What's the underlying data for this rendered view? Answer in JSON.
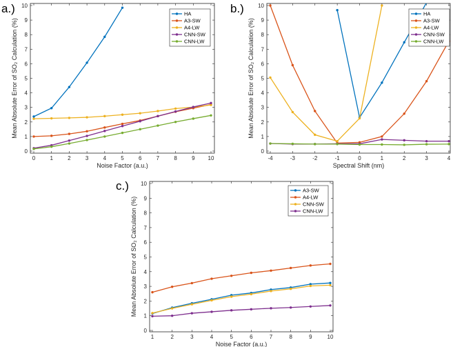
{
  "colors": {
    "blue": "#0072BD",
    "orange": "#D95319",
    "yellow": "#EDB120",
    "purple": "#7E2F8E",
    "green": "#77AC30"
  },
  "chart_data": [
    {
      "type": "line",
      "panel_label": "a.)",
      "xlabel": "Noise Factor (a.u.)",
      "ylabel": "Mean Absolute Error of SO₂ Calculation (%)",
      "xlim": [
        0,
        10
      ],
      "ylim": [
        0,
        10
      ],
      "xticks": [
        "0",
        "1",
        "2",
        "3",
        "4",
        "5",
        "6",
        "7",
        "8",
        "9",
        "10"
      ],
      "yticks": [
        "0",
        "1",
        "2",
        "3",
        "4",
        "5",
        "6",
        "7",
        "8",
        "9",
        "10"
      ],
      "legend_position": "top-right",
      "series": [
        {
          "name": "HA",
          "color": "#0072BD",
          "x": [
            0,
            1,
            2,
            3,
            4,
            5
          ],
          "y": [
            2.37,
            2.95,
            4.4,
            6.07,
            7.85,
            9.85
          ]
        },
        {
          "name": "A3-SW",
          "color": "#D95319",
          "x": [
            0,
            1,
            2,
            3,
            4,
            5,
            6,
            7,
            8,
            9,
            10
          ],
          "y": [
            1.0,
            1.05,
            1.18,
            1.36,
            1.62,
            1.87,
            2.1,
            2.4,
            2.7,
            2.95,
            3.2
          ]
        },
        {
          "name": "A4-LW",
          "color": "#EDB120",
          "x": [
            0,
            1,
            2,
            3,
            4,
            5,
            6,
            7,
            8,
            9,
            10
          ],
          "y": [
            2.22,
            2.25,
            2.28,
            2.32,
            2.4,
            2.5,
            2.6,
            2.75,
            2.92,
            3.02,
            3.17
          ]
        },
        {
          "name": "CNN-SW",
          "color": "#7E2F8E",
          "x": [
            0,
            1,
            2,
            3,
            4,
            5,
            6,
            7,
            8,
            9,
            10
          ],
          "y": [
            0.2,
            0.4,
            0.72,
            1.04,
            1.38,
            1.72,
            2.05,
            2.4,
            2.72,
            3.03,
            3.3
          ]
        },
        {
          "name": "CNN-LW",
          "color": "#77AC30",
          "x": [
            0,
            1,
            2,
            3,
            4,
            5,
            6,
            7,
            8,
            9,
            10
          ],
          "y": [
            0.15,
            0.3,
            0.52,
            0.76,
            1.0,
            1.25,
            1.5,
            1.75,
            2.0,
            2.23,
            2.45
          ]
        }
      ]
    },
    {
      "type": "line",
      "panel_label": "b.)",
      "xlabel": "Spectral Shift (nm)",
      "ylabel": "Mean Absolute Error of SO₂ Calculation (%)",
      "xlim": [
        -4,
        4
      ],
      "ylim": [
        0,
        10
      ],
      "xticks": [
        "-4",
        "-3",
        "-2",
        "-1",
        "0",
        "1",
        "2",
        "3",
        "4"
      ],
      "yticks": [
        "0",
        "1",
        "2",
        "3",
        "4",
        "5",
        "6",
        "7",
        "8",
        "9",
        "10"
      ],
      "legend_position": "top-right",
      "series": [
        {
          "name": "HA",
          "color": "#0072BD",
          "x": [
            -1,
            0,
            1,
            2,
            3
          ],
          "y": [
            9.68,
            2.3,
            4.7,
            7.47,
            10.2
          ]
        },
        {
          "name": "A3-SW",
          "color": "#D95319",
          "x": [
            -4,
            -3,
            -2,
            -1,
            0,
            1,
            2,
            3,
            4
          ],
          "y": [
            10.0,
            5.9,
            2.75,
            0.55,
            0.6,
            1.0,
            2.57,
            4.8,
            7.55
          ]
        },
        {
          "name": "A4-LW",
          "color": "#EDB120",
          "x": [
            -4,
            -3,
            -2,
            -1,
            0,
            1
          ],
          "y": [
            5.05,
            2.68,
            1.12,
            0.68,
            2.25,
            10.0
          ]
        },
        {
          "name": "CNN-SW",
          "color": "#7E2F8E",
          "x": [
            -4,
            -3,
            -2,
            -1,
            0,
            1,
            2,
            3,
            4
          ],
          "y": [
            0.52,
            0.48,
            0.48,
            0.5,
            0.5,
            0.8,
            0.74,
            0.68,
            0.68
          ]
        },
        {
          "name": "CNN-LW",
          "color": "#77AC30",
          "x": [
            -4,
            -3,
            -2,
            -1,
            0,
            1,
            2,
            3,
            4
          ],
          "y": [
            0.52,
            0.5,
            0.48,
            0.48,
            0.45,
            0.45,
            0.43,
            0.47,
            0.48
          ]
        }
      ]
    },
    {
      "type": "line",
      "panel_label": "c.)",
      "xlabel": "Noise Factor (a.u.)",
      "ylabel": "Mean Absolute Error of SO₂ Calculation (%)",
      "xlim": [
        1,
        10
      ],
      "ylim": [
        0,
        10
      ],
      "xticks": [
        "1",
        "2",
        "3",
        "4",
        "5",
        "6",
        "7",
        "8",
        "9",
        "10"
      ],
      "yticks": [
        "0",
        "1",
        "2",
        "3",
        "4",
        "5",
        "6",
        "7",
        "8",
        "9",
        "10"
      ],
      "legend_position": "top-right",
      "series": [
        {
          "name": "A3-SW",
          "color": "#0072BD",
          "x": [
            1,
            2,
            3,
            4,
            5,
            6,
            7,
            8,
            9,
            10
          ],
          "y": [
            1.15,
            1.55,
            1.85,
            2.12,
            2.4,
            2.55,
            2.78,
            2.92,
            3.15,
            3.23
          ]
        },
        {
          "name": "A4-LW",
          "color": "#D95319",
          "x": [
            1,
            2,
            3,
            4,
            5,
            6,
            7,
            8,
            9,
            10
          ],
          "y": [
            2.6,
            2.97,
            3.22,
            3.52,
            3.72,
            3.92,
            4.07,
            4.25,
            4.42,
            4.53
          ]
        },
        {
          "name": "CNN-SW",
          "color": "#EDB120",
          "x": [
            1,
            2,
            3,
            4,
            5,
            6,
            7,
            8,
            9,
            10
          ],
          "y": [
            1.18,
            1.5,
            1.78,
            2.05,
            2.3,
            2.47,
            2.68,
            2.83,
            3.03,
            3.08
          ]
        },
        {
          "name": "CNN-LW",
          "color": "#7E2F8E",
          "x": [
            1,
            2,
            3,
            4,
            5,
            6,
            7,
            8,
            9,
            10
          ],
          "y": [
            0.97,
            1.0,
            1.17,
            1.27,
            1.37,
            1.44,
            1.51,
            1.56,
            1.63,
            1.7
          ]
        }
      ]
    }
  ]
}
